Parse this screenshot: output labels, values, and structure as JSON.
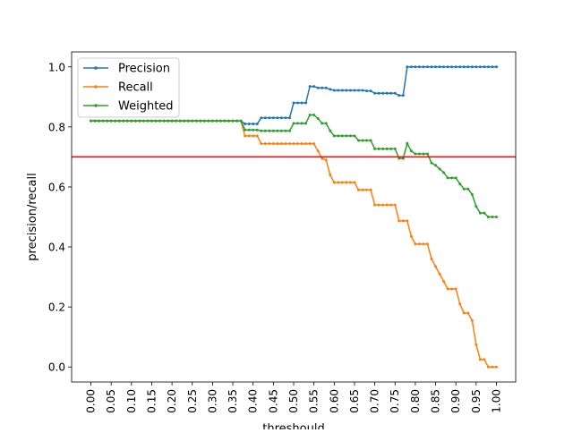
{
  "chart_data": {
    "type": "line",
    "title": "",
    "xlabel": "threshould",
    "ylabel": "precision/recall",
    "xlim": [
      -0.0475,
      1.0475
    ],
    "ylim": [
      -0.05,
      1.05
    ],
    "xticks": [
      "0.00",
      "0.05",
      "0.10",
      "0.15",
      "0.20",
      "0.25",
      "0.30",
      "0.35",
      "0.40",
      "0.45",
      "0.50",
      "0.55",
      "0.60",
      "0.65",
      "0.70",
      "0.75",
      "0.80",
      "0.85",
      "0.90",
      "0.95",
      "1.00"
    ],
    "yticks": [
      "0.0",
      "0.2",
      "0.4",
      "0.6",
      "0.8",
      "1.0"
    ],
    "grid": false,
    "legend": {
      "position": "top-left"
    },
    "reference_line": {
      "y": 0.7,
      "color": "#ff0000"
    },
    "series": [
      {
        "name": "Precision",
        "color": "#1f77b4",
        "points": [
          [
            0,
            0.82
          ],
          [
            0.37,
            0.82
          ],
          [
            0.38,
            0.81
          ],
          [
            0.41,
            0.81
          ],
          [
            0.42,
            0.83
          ],
          [
            0.49,
            0.83
          ],
          [
            0.5,
            0.88
          ],
          [
            0.53,
            0.88
          ],
          [
            0.54,
            0.935
          ],
          [
            0.55,
            0.935
          ],
          [
            0.56,
            0.93
          ],
          [
            0.58,
            0.93
          ],
          [
            0.59,
            0.925
          ],
          [
            0.6,
            0.922
          ],
          [
            0.67,
            0.922
          ],
          [
            0.68,
            0.92
          ],
          [
            0.69,
            0.92
          ],
          [
            0.7,
            0.912
          ],
          [
            0.75,
            0.912
          ],
          [
            0.76,
            0.905
          ],
          [
            0.77,
            0.905
          ],
          [
            0.78,
            1.0
          ],
          [
            1.0,
            1.0
          ]
        ]
      },
      {
        "name": "Recall",
        "color": "#ff7f0e",
        "points": [
          [
            0,
            0.82
          ],
          [
            0.37,
            0.82
          ],
          [
            0.38,
            0.77
          ],
          [
            0.41,
            0.77
          ],
          [
            0.42,
            0.744
          ],
          [
            0.55,
            0.744
          ],
          [
            0.56,
            0.72
          ],
          [
            0.57,
            0.695
          ],
          [
            0.58,
            0.69
          ],
          [
            0.59,
            0.64
          ],
          [
            0.6,
            0.615
          ],
          [
            0.65,
            0.615
          ],
          [
            0.66,
            0.59
          ],
          [
            0.69,
            0.59
          ],
          [
            0.7,
            0.54
          ],
          [
            0.75,
            0.54
          ],
          [
            0.76,
            0.487
          ],
          [
            0.78,
            0.487
          ],
          [
            0.79,
            0.435
          ],
          [
            0.8,
            0.41
          ],
          [
            0.83,
            0.41
          ],
          [
            0.84,
            0.36
          ],
          [
            0.85,
            0.335
          ],
          [
            0.86,
            0.31
          ],
          [
            0.87,
            0.285
          ],
          [
            0.88,
            0.26
          ],
          [
            0.9,
            0.26
          ],
          [
            0.91,
            0.21
          ],
          [
            0.92,
            0.18
          ],
          [
            0.93,
            0.18
          ],
          [
            0.94,
            0.155
          ],
          [
            0.95,
            0.075
          ],
          [
            0.96,
            0.025
          ],
          [
            0.97,
            0.025
          ],
          [
            0.98,
            0.0
          ],
          [
            1.0,
            0.0
          ]
        ]
      },
      {
        "name": "Weighted",
        "color": "#2ca02c",
        "points": [
          [
            0,
            0.82
          ],
          [
            0.37,
            0.82
          ],
          [
            0.38,
            0.79
          ],
          [
            0.41,
            0.79
          ],
          [
            0.42,
            0.787
          ],
          [
            0.49,
            0.787
          ],
          [
            0.5,
            0.812
          ],
          [
            0.53,
            0.812
          ],
          [
            0.54,
            0.84
          ],
          [
            0.55,
            0.84
          ],
          [
            0.56,
            0.828
          ],
          [
            0.57,
            0.812
          ],
          [
            0.58,
            0.812
          ],
          [
            0.59,
            0.787
          ],
          [
            0.6,
            0.77
          ],
          [
            0.65,
            0.77
          ],
          [
            0.66,
            0.755
          ],
          [
            0.69,
            0.755
          ],
          [
            0.7,
            0.727
          ],
          [
            0.75,
            0.727
          ],
          [
            0.76,
            0.695
          ],
          [
            0.77,
            0.695
          ],
          [
            0.78,
            0.745
          ],
          [
            0.79,
            0.72
          ],
          [
            0.8,
            0.71
          ],
          [
            0.83,
            0.71
          ],
          [
            0.84,
            0.68
          ],
          [
            0.85,
            0.672
          ],
          [
            0.86,
            0.66
          ],
          [
            0.87,
            0.648
          ],
          [
            0.88,
            0.63
          ],
          [
            0.9,
            0.63
          ],
          [
            0.91,
            0.61
          ],
          [
            0.92,
            0.593
          ],
          [
            0.93,
            0.593
          ],
          [
            0.94,
            0.575
          ],
          [
            0.95,
            0.535
          ],
          [
            0.96,
            0.513
          ],
          [
            0.97,
            0.513
          ],
          [
            0.98,
            0.5
          ],
          [
            1.0,
            0.5
          ]
        ]
      }
    ]
  }
}
